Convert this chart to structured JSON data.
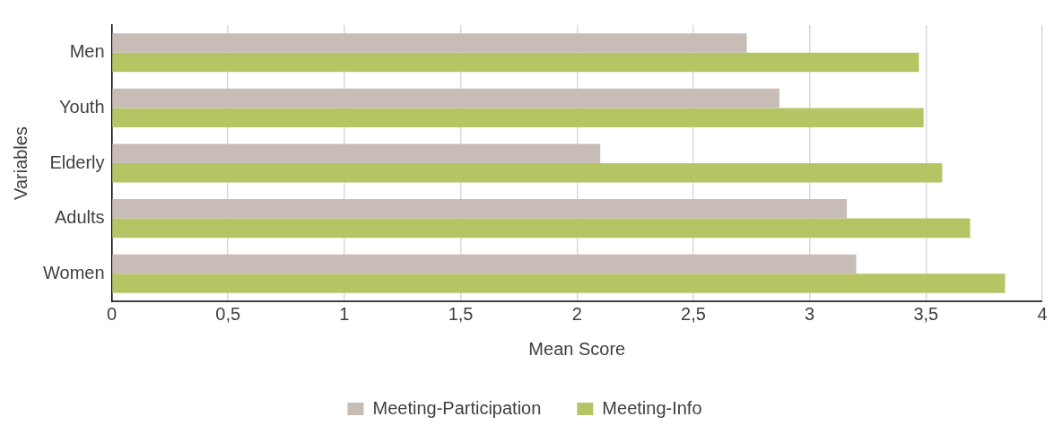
{
  "chart_data": {
    "type": "bar",
    "orientation": "horizontal",
    "xlabel": "Mean Score",
    "ylabel": "Variables",
    "categories": [
      "Men",
      "Youth",
      "Elderly",
      "Adults",
      "Women"
    ],
    "series": [
      {
        "name": "Meeting-Participation",
        "color": "#c8bcb6",
        "values": [
          2.73,
          2.87,
          2.1,
          3.16,
          3.2
        ]
      },
      {
        "name": "Meeting-Info",
        "color": "#b5c564",
        "values": [
          3.47,
          3.49,
          3.57,
          3.69,
          3.84
        ]
      }
    ],
    "xlim": [
      0,
      4
    ],
    "xticks": [
      0,
      {
        "value": 0.5,
        "label": "0,5"
      },
      1,
      {
        "value": 1.5,
        "label": "1,5"
      },
      2,
      {
        "value": 2.5,
        "label": "2,5"
      },
      3,
      {
        "value": 3.5,
        "label": "3,5"
      },
      4
    ],
    "grid": "x",
    "legend": "bottom"
  }
}
